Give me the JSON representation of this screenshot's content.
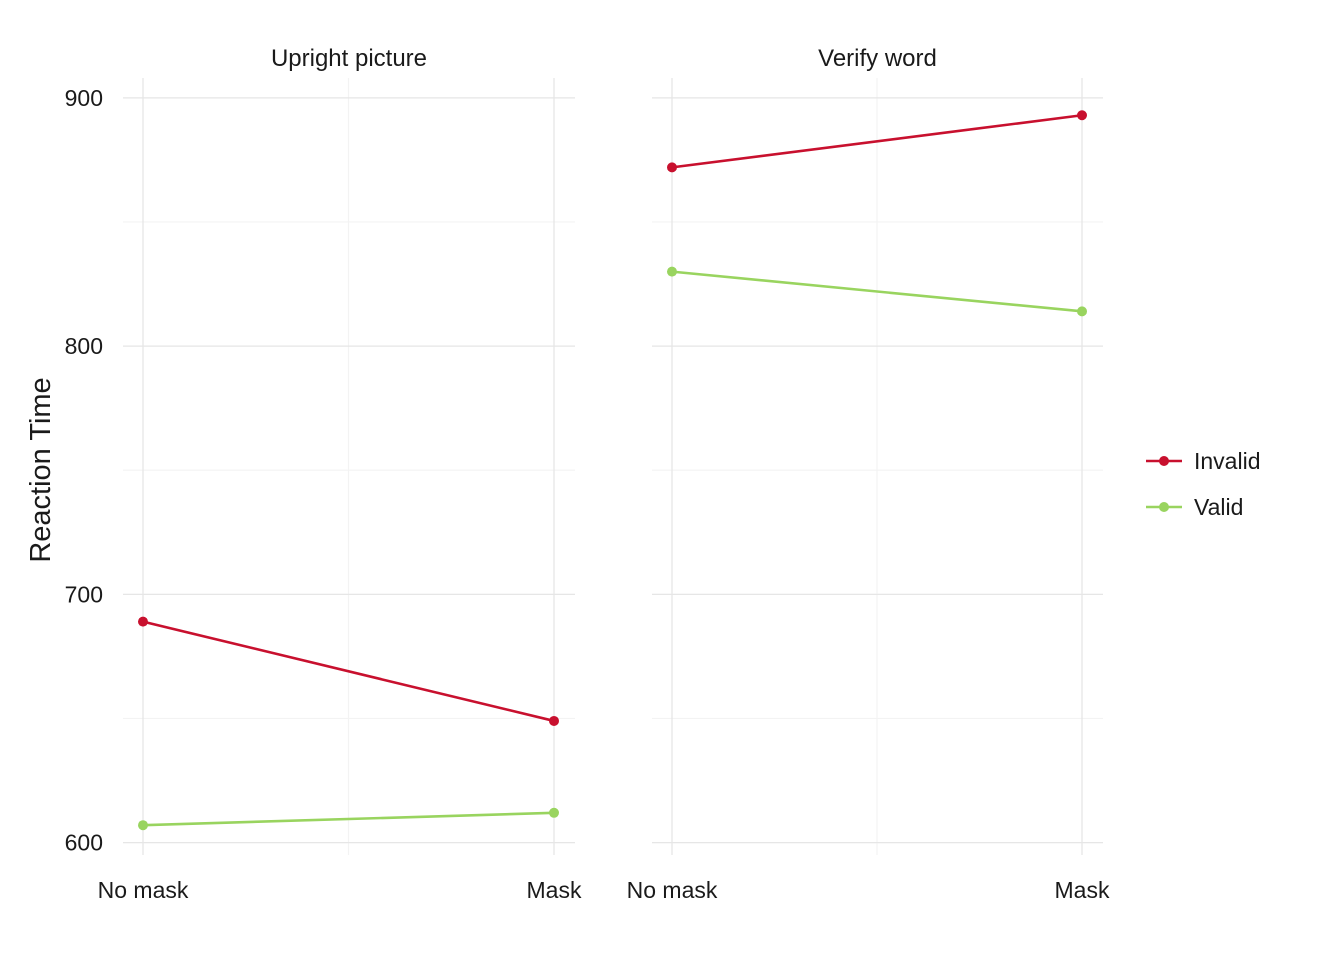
{
  "chart_data": {
    "type": "line",
    "ylabel": "Reaction Time",
    "xlabel": "",
    "ylim": [
      595,
      908
    ],
    "yticks": [
      600,
      700,
      800,
      900
    ],
    "categories": [
      "No mask",
      "Mask"
    ],
    "grid": "on",
    "legend_position": "right",
    "colors": {
      "Invalid": "#c8102e",
      "Valid": "#99d45f"
    },
    "panels": [
      {
        "title": "Upright picture",
        "series": [
          {
            "name": "Invalid",
            "values": [
              689,
              649
            ]
          },
          {
            "name": "Valid",
            "values": [
              607,
              612
            ]
          }
        ]
      },
      {
        "title": "Verify word",
        "series": [
          {
            "name": "Invalid",
            "values": [
              872,
              893
            ]
          },
          {
            "name": "Valid",
            "values": [
              830,
              814
            ]
          }
        ]
      }
    ],
    "legend": [
      "Invalid",
      "Valid"
    ]
  }
}
